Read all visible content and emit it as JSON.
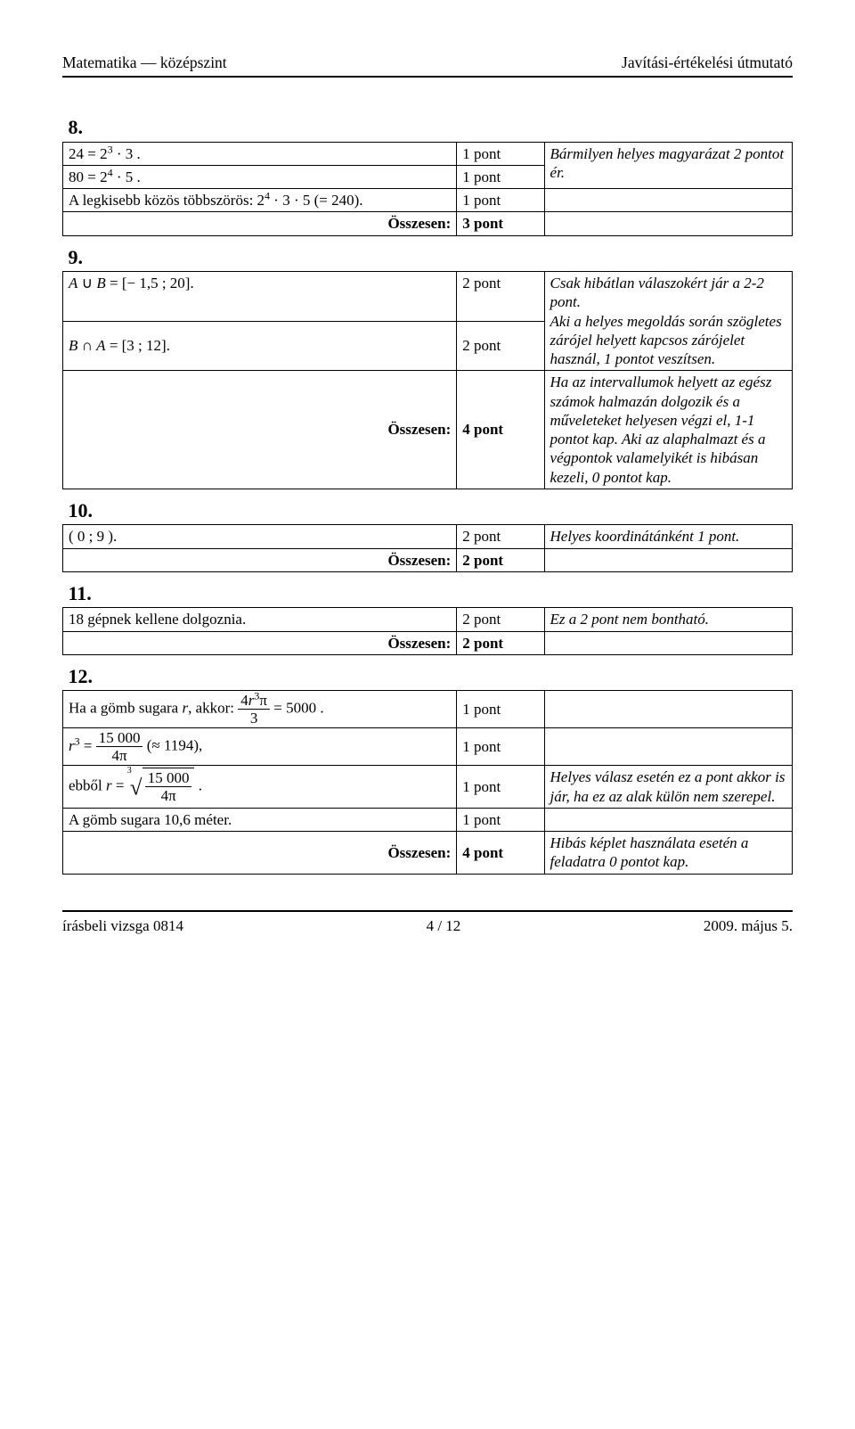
{
  "header": {
    "left": "Matematika — középszint",
    "right": "Javítási-értékelési útmutató"
  },
  "footer": {
    "left": "írásbeli vizsga 0814",
    "mid": "4 / 12",
    "right": "2009. május 5."
  },
  "labels": {
    "osszesen": "Összesen:"
  },
  "p8": {
    "num": "8.",
    "r1c1_html": "24 = 2<sup>3</sup> · 3 .",
    "r1c2": "1 pont",
    "r1c3": "Bármilyen helyes magyarázat 2 pontot ér.",
    "r2c1_html": "80 = 2<sup>4</sup> · 5 .",
    "r2c2": "1 pont",
    "r3c1_html": "A legkisebb közös többszörös: 2<sup>4</sup> · 3 · 5 (= 240).",
    "r3c2": "1 pont",
    "total": "3 pont"
  },
  "p9": {
    "num": "9.",
    "r1c1_html": "<span class=\"italic\">A</span> ∪ <span class=\"italic\">B</span> = [− 1,5 ; 20].",
    "r1c2": "2 pont",
    "r2c1_html": "<span class=\"italic\">B</span> ∩ <span class=\"italic\">A</span> = [3 ; 12].",
    "r2c2": "2 pont",
    "right1": "Csak hibátlan válaszokért jár a 2-2 pont.\nAki a helyes megoldás során szögletes zárójel helyett kapcsos zárójelet használ, 1 pontot veszítsen.",
    "total": "4 pont",
    "right2": "Ha az intervallumok helyett az egész számok halmazán dolgozik és a műveleteket helyesen végzi el, 1-1 pontot kap. Aki az alaphalmazt és a végpontok valamelyikét is hibásan kezeli, 0 pontot kap."
  },
  "p10": {
    "num": "10.",
    "r1c1": "( 0 ; 9 ).",
    "r1c2": "2 pont",
    "r1c3": "Helyes koordinátánként 1 pont.",
    "total": "2 pont"
  },
  "p11": {
    "num": "11.",
    "r1c1": "18 gépnek kellene dolgoznia.",
    "r1c2": "2 pont",
    "r1c3": "Ez a 2 pont nem bontható.",
    "total": "2 pont"
  },
  "p12": {
    "num": "12.",
    "r1_pre": "Ha a gömb sugara ",
    "r1_var": "r",
    "r1_mid": ", akkor: ",
    "r1_frac_num_html": "4<span class=\"italic\">r</span><sup>3</sup>π",
    "r1_frac_den": "3",
    "r1_post": " = 5000 .",
    "r1c2": "1 pont",
    "r2_lhs_html": "<span class=\"italic\">r</span><sup>3</sup> = ",
    "r2_frac_num": "15 000",
    "r2_frac_den_html": "4π",
    "r2_post": " (≈ 1194),",
    "r2c2": "1 pont",
    "r3_pre": "ebből ",
    "r3_lhs_html": "<span class=\"italic\">r</span> = ",
    "r3_root_idx": "3",
    "r3_frac_num": "15 000",
    "r3_frac_den_html": "4π",
    "r3_post": " .",
    "r3c2": "1 pont",
    "r3c3": "Helyes válasz esetén ez a pont akkor is jár, ha ez az alak külön nem szerepel.",
    "r4c1": "A gömb sugara 10,6 méter.",
    "r4c2": "1 pont",
    "total": "4 pont",
    "total_right": "Hibás képlet használata esetén a feladatra 0 pontot kap."
  }
}
